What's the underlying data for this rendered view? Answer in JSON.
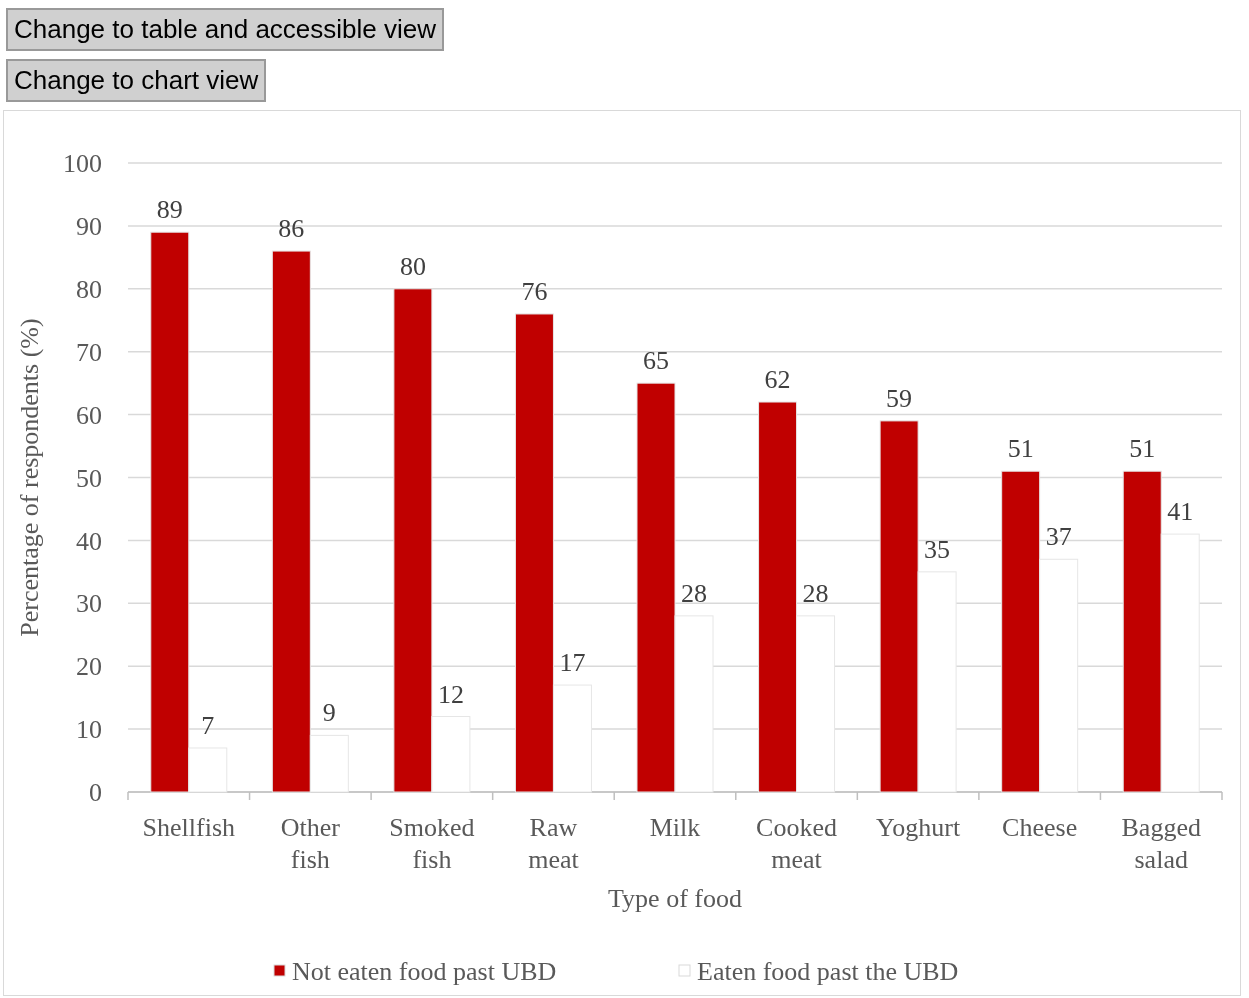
{
  "chart_data": {
    "type": "bar",
    "xlabel": "Type of food",
    "ylabel": "Percentage of respondents (%)",
    "annotations": [
      "Change to table and accessible view",
      "Change to chart view"
    ],
    "categories": [
      "Shellfish",
      "Other fish",
      "Smoked fish",
      "Raw meat",
      "Milk",
      "Cooked meat",
      "Yoghurt",
      "Cheese",
      "Bagged salad"
    ],
    "series": [
      {
        "name": "Not eaten food past UBD",
        "color": "#c00000",
        "values": [
          89,
          86,
          80,
          76,
          65,
          62,
          59,
          51,
          51
        ]
      },
      {
        "name": "Eaten food past the UBD",
        "color": "#ffffff",
        "values": [
          7,
          9,
          12,
          17,
          28,
          28,
          35,
          37,
          41
        ]
      }
    ],
    "ylim": [
      0,
      100
    ],
    "yticks": [
      0,
      10,
      20,
      30,
      40,
      50,
      60,
      70,
      80,
      90,
      100
    ],
    "grid": "y",
    "data_labels": true,
    "legend": "bottom"
  }
}
